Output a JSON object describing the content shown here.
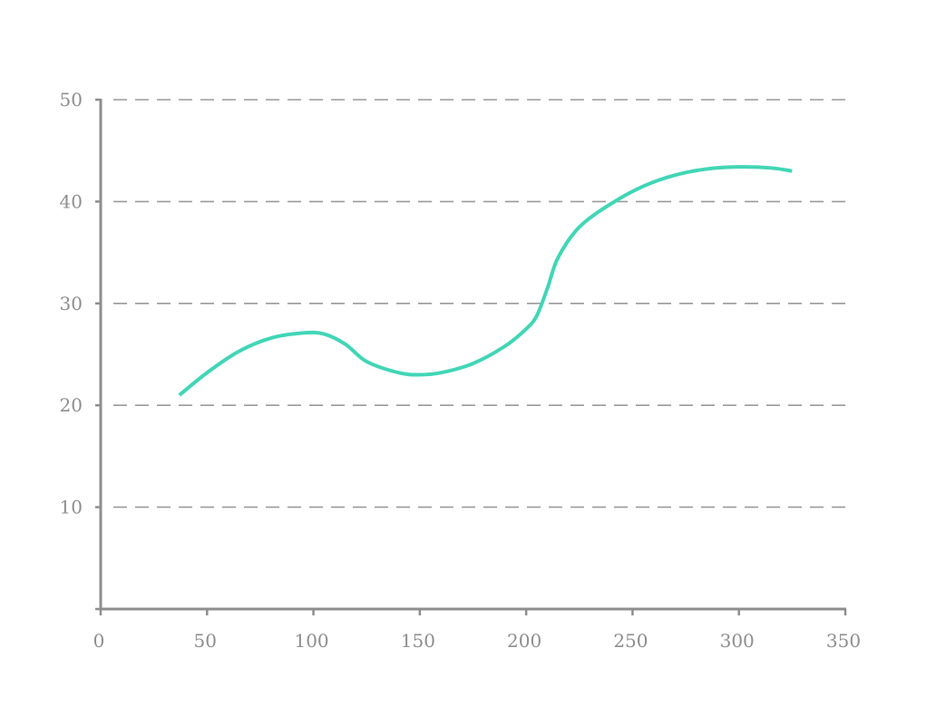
{
  "chart_data": {
    "type": "line",
    "title": "",
    "xlabel": "",
    "ylabel": "",
    "xlim": [
      0,
      350
    ],
    "ylim": [
      0,
      50
    ],
    "x_ticks": [
      0,
      50,
      100,
      150,
      200,
      250,
      300,
      350
    ],
    "y_ticks": [
      10,
      20,
      30,
      40,
      50
    ],
    "grid": "horizontal dashed",
    "legend": "none",
    "colors": {
      "series": "#41d6b6",
      "axis": "#8e8e8e",
      "grid": "#9a9a9a"
    },
    "series": [
      {
        "x": [
          37,
          50,
          65,
          80,
          95,
          105,
          115,
          125,
          140,
          150,
          160,
          175,
          190,
          200,
          205,
          210,
          215,
          225,
          240,
          255,
          270,
          285,
          300,
          315,
          325
        ],
        "y": [
          21,
          23.2,
          25.3,
          26.6,
          27.1,
          27.0,
          26.0,
          24.3,
          23.2,
          23.0,
          23.2,
          24.1,
          25.8,
          27.5,
          28.8,
          31.5,
          34.5,
          37.5,
          39.8,
          41.5,
          42.6,
          43.2,
          43.4,
          43.3,
          43.0
        ]
      }
    ]
  }
}
